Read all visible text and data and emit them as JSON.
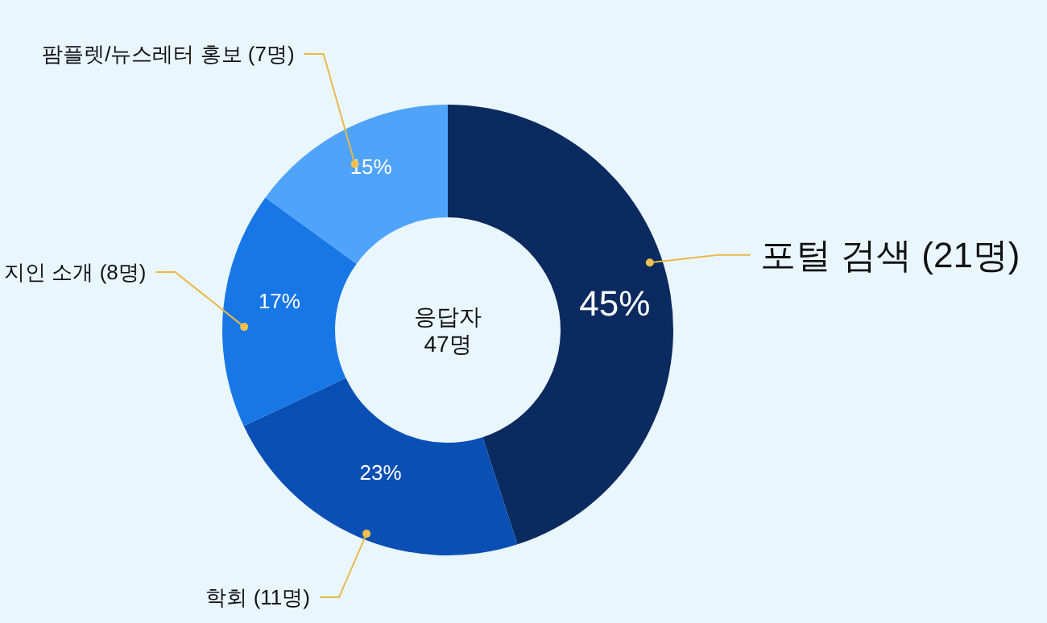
{
  "chart_data": {
    "type": "donut",
    "categories": [
      "포털 검색 (21명)",
      "학회 (11명)",
      "지인 소개 (8명)",
      "팜플렛/뉴스레터 홍보 (7명)"
    ],
    "values": [
      45,
      23,
      17,
      15
    ],
    "value_labels": [
      "45%",
      "23%",
      "17%",
      "15%"
    ],
    "colors": [
      "#0b2a5f",
      "#0a4fb4",
      "#1877e6",
      "#4fa3fb"
    ],
    "annotations": [
      "응답자\n47명"
    ]
  }
}
